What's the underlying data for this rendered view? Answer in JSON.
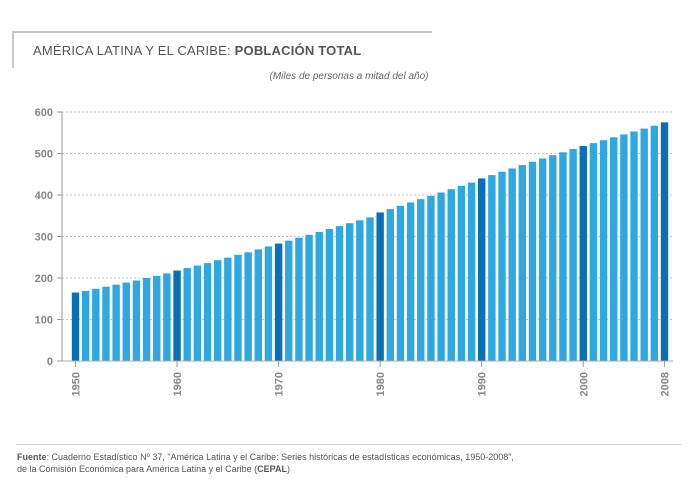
{
  "header": {
    "title_plain": "AMÉRICA LATINA Y EL CARIBE:",
    "title_bold": "POBLACIÓN TOTAL",
    "subtitle": "(Miles de personas a mitad del año)"
  },
  "footer": {
    "label": "Fuente",
    "line1": ":  Cuaderno Estadístico Nº 37, \"América Latina y el Caribe: Series históricas de estadísticas económicas, 1950-2008\",",
    "line2_pre": "de la Comisión Económica para América Latina y el Caribe (",
    "line2_bold": "CEPAL",
    "line2_post": ")"
  },
  "colors": {
    "bar": "#2fa8e2",
    "bar_highlight": "#0a6fb5",
    "grid": "#c8c8c8",
    "axis_text": "#888888"
  },
  "chart_data": {
    "type": "bar",
    "title": "",
    "xlabel": "",
    "ylabel": "",
    "ylim": [
      0,
      600
    ],
    "yticks": [
      0,
      100,
      200,
      300,
      400,
      500,
      600
    ],
    "grid": true,
    "x_tick_labels": [
      "1950",
      "1960",
      "1970",
      "1980",
      "1990",
      "2000",
      "2008"
    ],
    "highlight_years": [
      1950,
      1960,
      1970,
      1980,
      1990,
      2000,
      2008
    ],
    "categories": [
      1950,
      1951,
      1952,
      1953,
      1954,
      1955,
      1956,
      1957,
      1958,
      1959,
      1960,
      1961,
      1962,
      1963,
      1964,
      1965,
      1966,
      1967,
      1968,
      1969,
      1970,
      1971,
      1972,
      1973,
      1974,
      1975,
      1976,
      1977,
      1978,
      1979,
      1980,
      1981,
      1982,
      1983,
      1984,
      1985,
      1986,
      1987,
      1988,
      1989,
      1990,
      1991,
      1992,
      1993,
      1994,
      1995,
      1996,
      1997,
      1998,
      1999,
      2000,
      2001,
      2002,
      2003,
      2004,
      2005,
      2006,
      2007,
      2008
    ],
    "values": [
      165,
      169,
      174,
      179,
      184,
      189,
      194,
      200,
      205,
      211,
      218,
      224,
      230,
      236,
      243,
      249,
      256,
      262,
      269,
      276,
      283,
      290,
      297,
      304,
      311,
      318,
      325,
      332,
      339,
      346,
      358,
      366,
      374,
      382,
      390,
      398,
      406,
      414,
      422,
      430,
      440,
      448,
      456,
      464,
      472,
      480,
      488,
      496,
      503,
      511,
      518,
      525,
      532,
      539,
      546,
      553,
      560,
      567,
      575
    ]
  }
}
